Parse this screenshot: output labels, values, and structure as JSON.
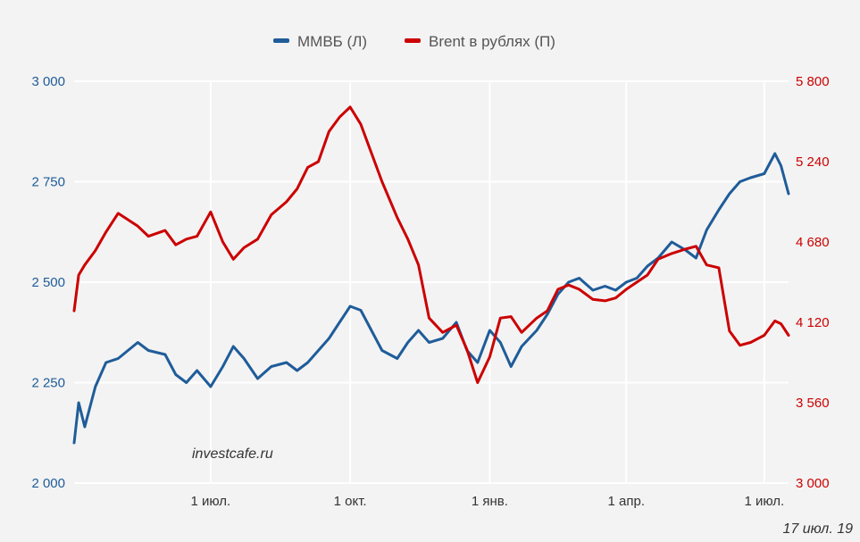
{
  "chart_data": {
    "type": "line",
    "watermark": "investcafe.ru",
    "date_stamp": "17 июл. 19",
    "legend_position": "top-center",
    "grid": true,
    "colors": {
      "left": "#1f5c99",
      "right": "#cc0000",
      "grid": "#ffffff",
      "background": "#f3f3f3"
    },
    "x_ticks": [
      "1 июл.",
      "1 окт.",
      "1 янв.",
      "1 апр.",
      "1 июл."
    ],
    "x_tick_dates": [
      "2018-07-01",
      "2018-10-01",
      "2019-01-01",
      "2019-04-01",
      "2019-07-01"
    ],
    "x_range": [
      "2018-04-02",
      "2019-07-17"
    ],
    "y_left": {
      "ylim": [
        2000,
        3000
      ],
      "ticks": [
        "2 000",
        "2 250",
        "2 500",
        "2 750",
        "3 000"
      ],
      "tick_values": [
        2000,
        2250,
        2500,
        2750,
        3000
      ]
    },
    "y_right": {
      "ylim": [
        3000,
        5800
      ],
      "ticks": [
        "3 000",
        "3 560",
        "4 120",
        "4 680",
        "5 240",
        "5 800"
      ],
      "tick_values": [
        3000,
        3560,
        4120,
        4680,
        5240,
        5800
      ]
    },
    "series": [
      {
        "name": "ММВБ (Л)",
        "axis": "left",
        "color": "#1f5c99",
        "x": [
          "2018-04-02",
          "2018-04-05",
          "2018-04-09",
          "2018-04-16",
          "2018-04-23",
          "2018-05-01",
          "2018-05-14",
          "2018-05-21",
          "2018-06-01",
          "2018-06-08",
          "2018-06-15",
          "2018-06-22",
          "2018-07-01",
          "2018-07-09",
          "2018-07-16",
          "2018-07-23",
          "2018-08-01",
          "2018-08-10",
          "2018-08-20",
          "2018-08-27",
          "2018-09-03",
          "2018-09-10",
          "2018-09-17",
          "2018-09-24",
          "2018-10-01",
          "2018-10-08",
          "2018-10-15",
          "2018-10-22",
          "2018-11-01",
          "2018-11-08",
          "2018-11-15",
          "2018-11-22",
          "2018-12-01",
          "2018-12-10",
          "2018-12-17",
          "2018-12-24",
          "2019-01-01",
          "2019-01-08",
          "2019-01-15",
          "2019-01-22",
          "2019-02-01",
          "2019-02-08",
          "2019-02-15",
          "2019-02-22",
          "2019-03-01",
          "2019-03-10",
          "2019-03-18",
          "2019-03-25",
          "2019-04-01",
          "2019-04-08",
          "2019-04-15",
          "2019-04-22",
          "2019-05-01",
          "2019-05-10",
          "2019-05-17",
          "2019-05-24",
          "2019-06-01",
          "2019-06-08",
          "2019-06-15",
          "2019-06-22",
          "2019-07-01",
          "2019-07-08",
          "2019-07-12",
          "2019-07-17"
        ],
        "y": [
          2100,
          2200,
          2140,
          2240,
          2300,
          2310,
          2350,
          2330,
          2320,
          2270,
          2250,
          2280,
          2240,
          2290,
          2340,
          2310,
          2260,
          2290,
          2300,
          2280,
          2300,
          2330,
          2360,
          2400,
          2440,
          2430,
          2380,
          2330,
          2310,
          2350,
          2380,
          2350,
          2360,
          2400,
          2330,
          2300,
          2380,
          2350,
          2290,
          2340,
          2380,
          2420,
          2470,
          2500,
          2510,
          2480,
          2490,
          2480,
          2500,
          2510,
          2540,
          2560,
          2600,
          2580,
          2560,
          2630,
          2680,
          2720,
          2750,
          2760,
          2770,
          2820,
          2790,
          2720
        ]
      },
      {
        "name": "Brent в рублях (П)",
        "axis": "right",
        "color": "#cc0000",
        "x": [
          "2018-04-02",
          "2018-04-05",
          "2018-04-09",
          "2018-04-16",
          "2018-04-23",
          "2018-05-01",
          "2018-05-14",
          "2018-05-21",
          "2018-06-01",
          "2018-06-08",
          "2018-06-15",
          "2018-06-22",
          "2018-07-01",
          "2018-07-09",
          "2018-07-16",
          "2018-07-23",
          "2018-08-01",
          "2018-08-10",
          "2018-08-20",
          "2018-08-27",
          "2018-09-03",
          "2018-09-10",
          "2018-09-17",
          "2018-09-24",
          "2018-10-01",
          "2018-10-08",
          "2018-10-15",
          "2018-10-22",
          "2018-11-01",
          "2018-11-08",
          "2018-11-15",
          "2018-11-22",
          "2018-12-01",
          "2018-12-10",
          "2018-12-17",
          "2018-12-24",
          "2019-01-01",
          "2019-01-08",
          "2019-01-15",
          "2019-01-22",
          "2019-02-01",
          "2019-02-08",
          "2019-02-15",
          "2019-02-22",
          "2019-03-01",
          "2019-03-10",
          "2019-03-18",
          "2019-03-25",
          "2019-04-01",
          "2019-04-08",
          "2019-04-15",
          "2019-04-22",
          "2019-05-01",
          "2019-05-10",
          "2019-05-17",
          "2019-05-24",
          "2019-06-01",
          "2019-06-08",
          "2019-06-15",
          "2019-06-22",
          "2019-07-01",
          "2019-07-08",
          "2019-07-12",
          "2019-07-17"
        ],
        "y": [
          4200,
          4450,
          4520,
          4620,
          4750,
          4880,
          4790,
          4720,
          4760,
          4660,
          4700,
          4720,
          4890,
          4680,
          4560,
          4640,
          4700,
          4870,
          4960,
          5050,
          5200,
          5240,
          5450,
          5550,
          5620,
          5500,
          5300,
          5100,
          4850,
          4700,
          4520,
          4150,
          4050,
          4100,
          3930,
          3700,
          3880,
          4150,
          4160,
          4050,
          4150,
          4200,
          4350,
          4380,
          4350,
          4280,
          4270,
          4290,
          4350,
          4400,
          4450,
          4560,
          4600,
          4630,
          4650,
          4520,
          4500,
          4060,
          3960,
          3980,
          4030,
          4130,
          4110,
          4030
        ]
      }
    ]
  }
}
